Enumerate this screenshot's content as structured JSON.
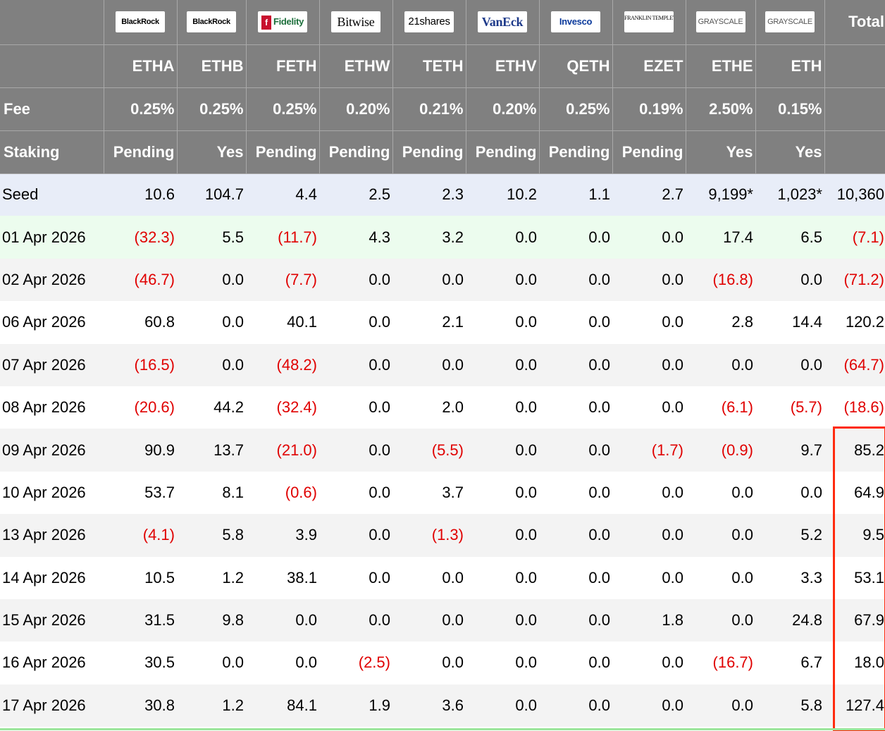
{
  "header": {
    "issuers": [
      {
        "logo_text": "BlackRock",
        "ticker": "ETHA",
        "fee": "0.25%",
        "staking": "Pending"
      },
      {
        "logo_text": "BlackRock",
        "ticker": "ETHB",
        "fee": "0.25%",
        "staking": "Yes"
      },
      {
        "logo_text": "Fidelity",
        "ticker": "FETH",
        "fee": "0.25%",
        "staking": "Pending"
      },
      {
        "logo_text": "Bitwise",
        "ticker": "ETHW",
        "fee": "0.20%",
        "staking": "Pending"
      },
      {
        "logo_text": "21shares",
        "ticker": "TETH",
        "fee": "0.21%",
        "staking": "Pending"
      },
      {
        "logo_text": "VanEck",
        "ticker": "ETHV",
        "fee": "0.20%",
        "staking": "Pending"
      },
      {
        "logo_text": "Invesco",
        "ticker": "QETH",
        "fee": "0.25%",
        "staking": "Pending"
      },
      {
        "logo_text": "FRANKLIN TEMPLETON",
        "ticker": "EZET",
        "fee": "0.19%",
        "staking": "Pending"
      },
      {
        "logo_text": "GRAYSCALE",
        "ticker": "ETHE",
        "fee": "2.50%",
        "staking": "Yes"
      },
      {
        "logo_text": "GRAYSCALE",
        "ticker": "ETH",
        "fee": "0.15%",
        "staking": "Yes"
      }
    ],
    "total_label": "Total",
    "fee_label": "Fee",
    "staking_label": "Staking"
  },
  "rows": [
    {
      "label": "Seed",
      "values": [
        "10.6",
        "104.7",
        "4.4",
        "2.5",
        "2.3",
        "10.2",
        "1.1",
        "2.7",
        "9,199*",
        "1,023*",
        "10,360"
      ]
    },
    {
      "label": "01 Apr 2026",
      "values": [
        "(32.3)",
        "5.5",
        "(11.7)",
        "4.3",
        "3.2",
        "0.0",
        "0.0",
        "0.0",
        "17.4",
        "6.5",
        "(7.1)"
      ]
    },
    {
      "label": "02 Apr 2026",
      "values": [
        "(46.7)",
        "0.0",
        "(7.7)",
        "0.0",
        "0.0",
        "0.0",
        "0.0",
        "0.0",
        "(16.8)",
        "0.0",
        "(71.2)"
      ]
    },
    {
      "label": "06 Apr 2026",
      "values": [
        "60.8",
        "0.0",
        "40.1",
        "0.0",
        "2.1",
        "0.0",
        "0.0",
        "0.0",
        "2.8",
        "14.4",
        "120.2"
      ]
    },
    {
      "label": "07 Apr 2026",
      "values": [
        "(16.5)",
        "0.0",
        "(48.2)",
        "0.0",
        "0.0",
        "0.0",
        "0.0",
        "0.0",
        "0.0",
        "0.0",
        "(64.7)"
      ]
    },
    {
      "label": "08 Apr 2026",
      "values": [
        "(20.6)",
        "44.2",
        "(32.4)",
        "0.0",
        "2.0",
        "0.0",
        "0.0",
        "0.0",
        "(6.1)",
        "(5.7)",
        "(18.6)"
      ]
    },
    {
      "label": "09 Apr 2026",
      "values": [
        "90.9",
        "13.7",
        "(21.0)",
        "0.0",
        "(5.5)",
        "0.0",
        "0.0",
        "(1.7)",
        "(0.9)",
        "9.7",
        "85.2"
      ]
    },
    {
      "label": "10 Apr 2026",
      "values": [
        "53.7",
        "8.1",
        "(0.6)",
        "0.0",
        "3.7",
        "0.0",
        "0.0",
        "0.0",
        "0.0",
        "0.0",
        "64.9"
      ]
    },
    {
      "label": "13 Apr 2026",
      "values": [
        "(4.1)",
        "5.8",
        "3.9",
        "0.0",
        "(1.3)",
        "0.0",
        "0.0",
        "0.0",
        "0.0",
        "5.2",
        "9.5"
      ]
    },
    {
      "label": "14 Apr 2026",
      "values": [
        "10.5",
        "1.2",
        "38.1",
        "0.0",
        "0.0",
        "0.0",
        "0.0",
        "0.0",
        "0.0",
        "3.3",
        "53.1"
      ]
    },
    {
      "label": "15 Apr 2026",
      "values": [
        "31.5",
        "9.8",
        "0.0",
        "0.0",
        "0.0",
        "0.0",
        "0.0",
        "1.8",
        "0.0",
        "24.8",
        "67.9"
      ]
    },
    {
      "label": "16 Apr 2026",
      "values": [
        "30.5",
        "0.0",
        "0.0",
        "(2.5)",
        "0.0",
        "0.0",
        "0.0",
        "0.0",
        "(16.7)",
        "6.7",
        "18.0"
      ]
    },
    {
      "label": "17 Apr 2026",
      "values": [
        "30.8",
        "1.2",
        "84.1",
        "1.9",
        "3.6",
        "0.0",
        "0.0",
        "0.0",
        "0.0",
        "5.8",
        "127.4"
      ]
    }
  ],
  "colors": {
    "header_bg": "#808080",
    "negative": "#e00000",
    "highlight_box": "#ff2b0f",
    "seed_row_bg": "#e8edf8",
    "first_row_bg": "#ecfcee"
  }
}
